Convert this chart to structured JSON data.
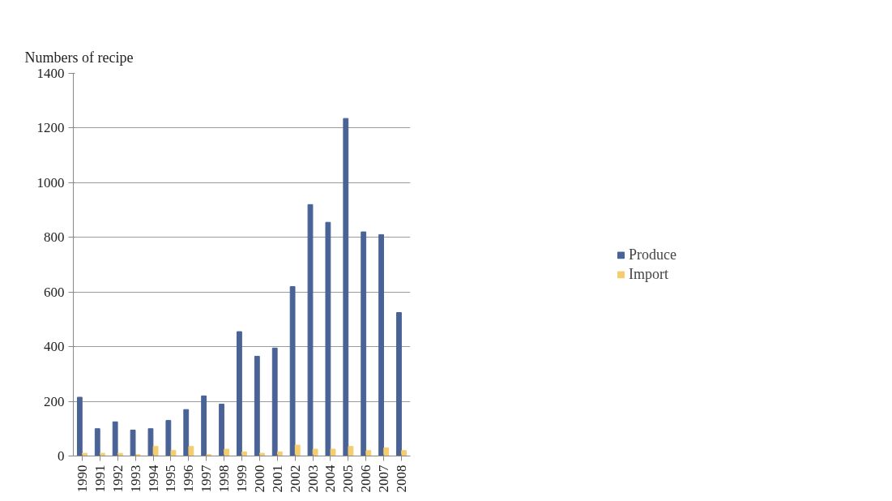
{
  "chart_data": {
    "type": "bar",
    "ylabel": "Numbers of recipe",
    "categories": [
      "1990",
      "1991",
      "1992",
      "1993",
      "1994",
      "1995",
      "1996",
      "1997",
      "1998",
      "1999",
      "2000",
      "2001",
      "2002",
      "2003",
      "2004",
      "2005",
      "2006",
      "2007",
      "2008"
    ],
    "series": [
      {
        "name": "Produce",
        "color": "#4a6396",
        "values": [
          215,
          100,
          125,
          95,
          100,
          130,
          170,
          220,
          190,
          455,
          365,
          395,
          620,
          920,
          855,
          1235,
          820,
          810,
          525
        ]
      },
      {
        "name": "Import",
        "color": "#f5cd6e",
        "values": [
          10,
          10,
          10,
          5,
          35,
          20,
          35,
          5,
          25,
          15,
          10,
          15,
          40,
          25,
          25,
          35,
          20,
          30,
          20
        ]
      }
    ],
    "ylim": [
      0,
      1400
    ],
    "yticks": [
      0,
      200,
      400,
      600,
      800,
      1000,
      1200,
      1400
    ],
    "grid": "y",
    "legend": "right"
  }
}
